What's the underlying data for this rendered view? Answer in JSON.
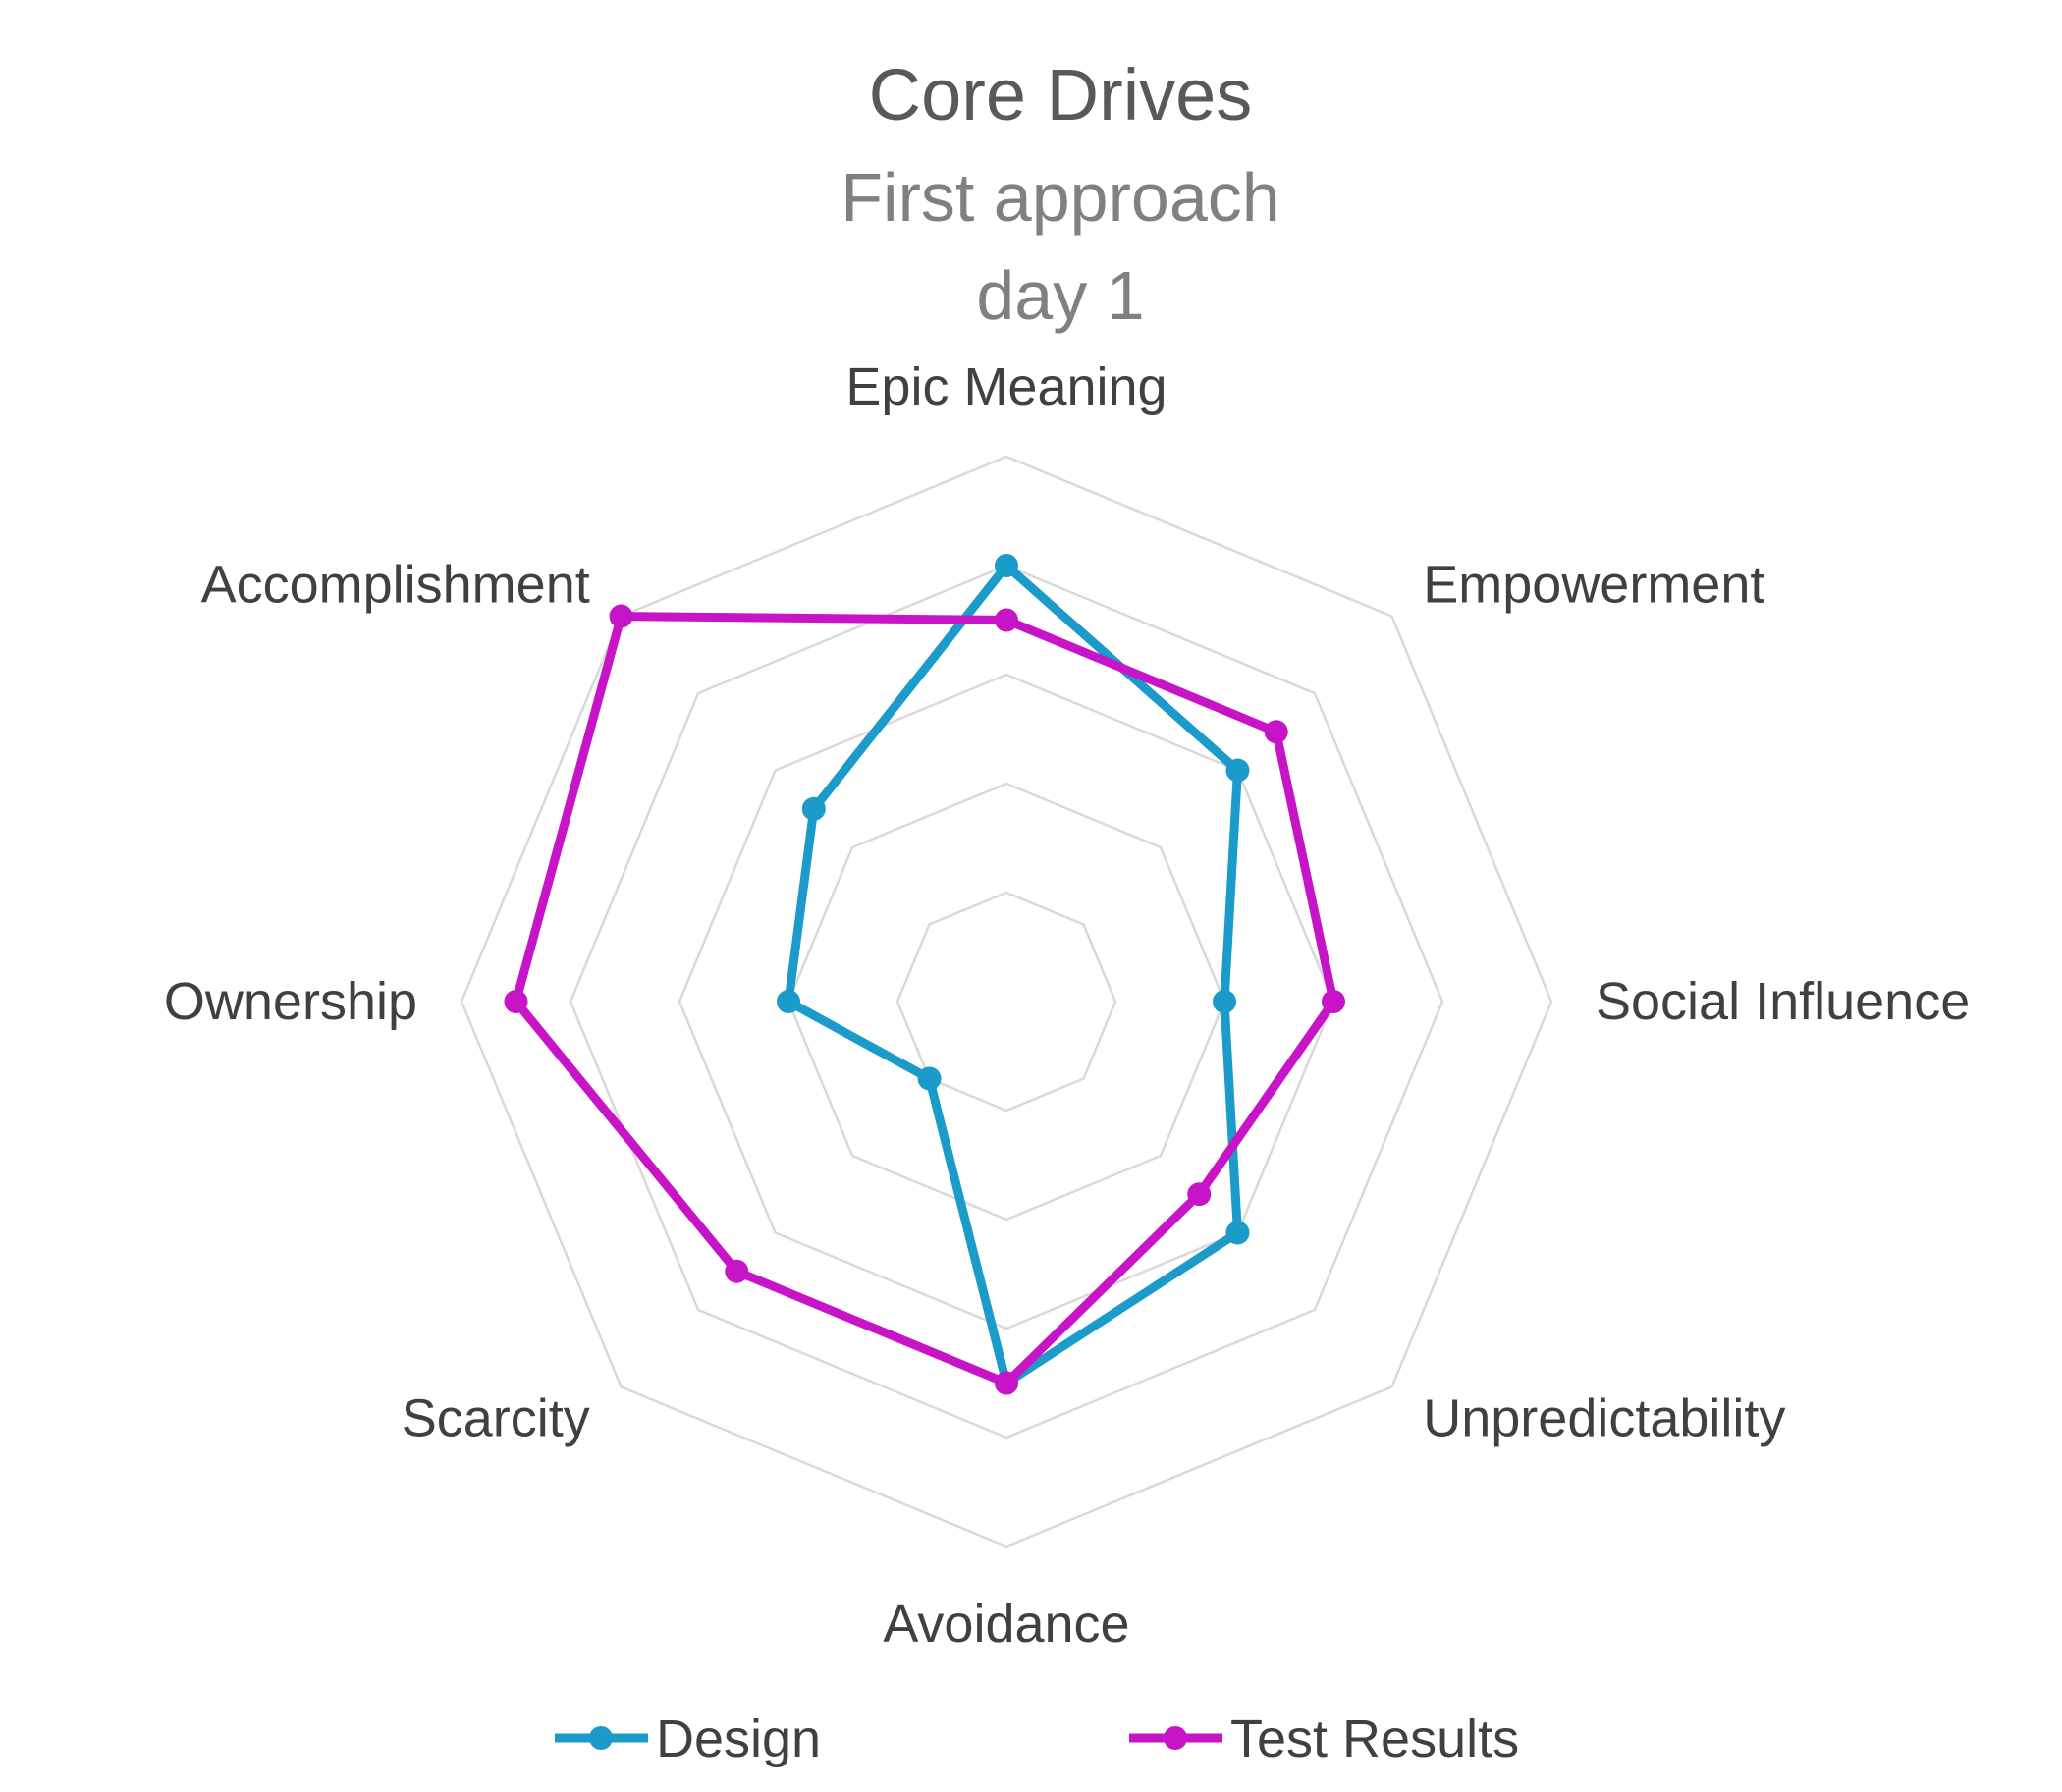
{
  "chart_data": {
    "type": "radar",
    "title": "Core Drives",
    "subtitle_lines": [
      "First approach",
      "day 1"
    ],
    "categories": [
      "Epic Meaning",
      "Empowerment",
      "Social Influence",
      "Unpredictability",
      "Avoidance",
      "Scarcity",
      "Ownership",
      "Accomplishment"
    ],
    "rlim": [
      0,
      5
    ],
    "grid": true,
    "legend_position": "bottom",
    "series": [
      {
        "name": "Design",
        "color": "#1a9bc9",
        "values": [
          4.0,
          3.0,
          2.0,
          3.0,
          3.5,
          1.0,
          2.0,
          2.5
        ]
      },
      {
        "name": "Test Results",
        "color": "#c714c7",
        "values": [
          3.5,
          3.5,
          3.0,
          2.5,
          3.5,
          3.5,
          4.5,
          5.0
        ]
      }
    ]
  }
}
